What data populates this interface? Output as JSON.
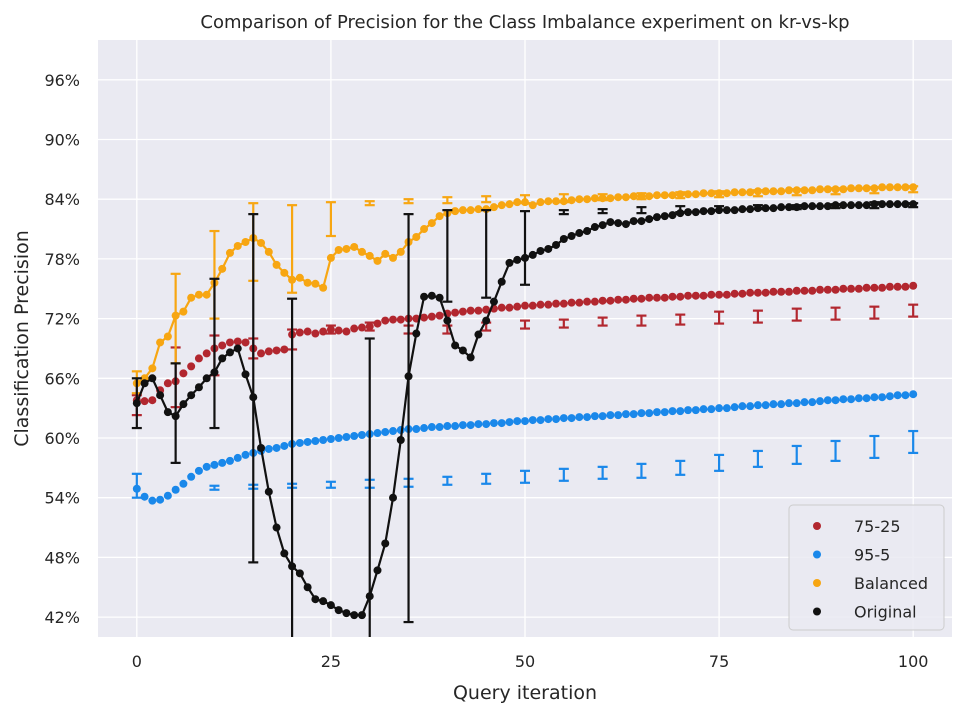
{
  "chart_data": {
    "type": "scatter",
    "title": "Comparison of Precision for the Class Imbalance experiment on kr-vs-kp",
    "xlabel": "Query iteration",
    "ylabel": "Classification Precision",
    "xlim": [
      -5,
      105
    ],
    "ylim": [
      0.4,
      1.0
    ],
    "x_ticks": [
      0,
      25,
      50,
      75,
      100
    ],
    "x_tick_labels": [
      "0",
      "25",
      "50",
      "75",
      "100"
    ],
    "y_ticks": [
      0.42,
      0.48,
      0.54,
      0.6,
      0.66,
      0.72,
      0.78,
      0.84,
      0.9,
      0.96
    ],
    "y_tick_labels": [
      "42%",
      "48%",
      "54%",
      "60%",
      "66%",
      "72%",
      "78%",
      "84%",
      "90%",
      "96%"
    ],
    "grid": true,
    "legend_position": "bottom-right",
    "x_step": 1,
    "series": [
      {
        "name": "75-25",
        "color": "#b2272f",
        "line": false,
        "values": [
          0.638,
          0.637,
          0.638,
          0.648,
          0.655,
          0.657,
          0.665,
          0.672,
          0.68,
          0.685,
          0.69,
          0.693,
          0.696,
          0.697,
          0.696,
          0.69,
          0.685,
          0.687,
          0.688,
          0.689,
          0.704,
          0.706,
          0.707,
          0.705,
          0.707,
          0.709,
          0.708,
          0.707,
          0.71,
          0.711,
          0.712,
          0.715,
          0.718,
          0.719,
          0.719,
          0.72,
          0.72,
          0.721,
          0.722,
          0.723,
          0.725,
          0.726,
          0.727,
          0.728,
          0.728,
          0.729,
          0.73,
          0.731,
          0.731,
          0.732,
          0.733,
          0.733,
          0.734,
          0.734,
          0.735,
          0.735,
          0.736,
          0.736,
          0.737,
          0.737,
          0.738,
          0.738,
          0.739,
          0.739,
          0.74,
          0.74,
          0.741,
          0.741,
          0.741,
          0.742,
          0.742,
          0.743,
          0.743,
          0.743,
          0.744,
          0.744,
          0.744,
          0.745,
          0.745,
          0.746,
          0.746,
          0.746,
          0.747,
          0.747,
          0.747,
          0.748,
          0.748,
          0.748,
          0.749,
          0.749,
          0.749,
          0.75,
          0.75,
          0.75,
          0.751,
          0.751,
          0.751,
          0.752,
          0.752,
          0.752,
          0.753
        ],
        "error_bars": [
          {
            "x": 0,
            "center": 0.633,
            "half": 0.01
          },
          {
            "x": 5,
            "center": 0.661,
            "half": 0.03
          },
          {
            "x": 10,
            "center": 0.683,
            "half": 0.02
          },
          {
            "x": 15,
            "center": 0.69,
            "half": 0.01
          },
          {
            "x": 20,
            "center": 0.699,
            "half": 0.01
          },
          {
            "x": 25,
            "center": 0.709,
            "half": 0.004
          },
          {
            "x": 30,
            "center": 0.712,
            "half": 0.004
          },
          {
            "x": 35,
            "center": 0.709,
            "half": 0.004
          },
          {
            "x": 40,
            "center": 0.709,
            "half": 0.004
          },
          {
            "x": 45,
            "center": 0.712,
            "half": 0.004
          },
          {
            "x": 50,
            "center": 0.714,
            "half": 0.004
          },
          {
            "x": 55,
            "center": 0.715,
            "half": 0.004
          },
          {
            "x": 60,
            "center": 0.717,
            "half": 0.004
          },
          {
            "x": 65,
            "center": 0.718,
            "half": 0.005
          },
          {
            "x": 70,
            "center": 0.719,
            "half": 0.005
          },
          {
            "x": 75,
            "center": 0.721,
            "half": 0.006
          },
          {
            "x": 80,
            "center": 0.722,
            "half": 0.006
          },
          {
            "x": 85,
            "center": 0.724,
            "half": 0.006
          },
          {
            "x": 90,
            "center": 0.725,
            "half": 0.006
          },
          {
            "x": 95,
            "center": 0.726,
            "half": 0.006
          },
          {
            "x": 100,
            "center": 0.728,
            "half": 0.006
          }
        ]
      },
      {
        "name": "95-5",
        "color": "#1a88ea",
        "line": false,
        "values": [
          0.549,
          0.541,
          0.537,
          0.538,
          0.542,
          0.548,
          0.554,
          0.561,
          0.567,
          0.571,
          0.573,
          0.575,
          0.577,
          0.58,
          0.583,
          0.585,
          0.587,
          0.589,
          0.59,
          0.592,
          0.594,
          0.595,
          0.596,
          0.597,
          0.598,
          0.599,
          0.6,
          0.601,
          0.602,
          0.603,
          0.604,
          0.605,
          0.606,
          0.607,
          0.608,
          0.609,
          0.609,
          0.61,
          0.611,
          0.611,
          0.612,
          0.612,
          0.613,
          0.613,
          0.614,
          0.614,
          0.615,
          0.615,
          0.616,
          0.617,
          0.617,
          0.618,
          0.618,
          0.619,
          0.619,
          0.62,
          0.62,
          0.621,
          0.621,
          0.622,
          0.622,
          0.623,
          0.623,
          0.624,
          0.624,
          0.625,
          0.625,
          0.626,
          0.626,
          0.627,
          0.627,
          0.628,
          0.628,
          0.629,
          0.629,
          0.63,
          0.63,
          0.631,
          0.632,
          0.632,
          0.633,
          0.633,
          0.634,
          0.634,
          0.635,
          0.635,
          0.636,
          0.636,
          0.637,
          0.638,
          0.638,
          0.639,
          0.639,
          0.64,
          0.64,
          0.641,
          0.641,
          0.642,
          0.643,
          0.643,
          0.644
        ],
        "error_bars": [
          {
            "x": 0,
            "center": 0.552,
            "half": 0.012
          },
          {
            "x": 10,
            "center": 0.55,
            "half": 0.002
          },
          {
            "x": 15,
            "center": 0.551,
            "half": 0.002
          },
          {
            "x": 20,
            "center": 0.552,
            "half": 0.002
          },
          {
            "x": 25,
            "center": 0.553,
            "half": 0.003
          },
          {
            "x": 30,
            "center": 0.554,
            "half": 0.004
          },
          {
            "x": 35,
            "center": 0.555,
            "half": 0.004
          },
          {
            "x": 40,
            "center": 0.557,
            "half": 0.004
          },
          {
            "x": 45,
            "center": 0.559,
            "half": 0.005
          },
          {
            "x": 50,
            "center": 0.561,
            "half": 0.006
          },
          {
            "x": 55,
            "center": 0.563,
            "half": 0.006
          },
          {
            "x": 60,
            "center": 0.565,
            "half": 0.006
          },
          {
            "x": 65,
            "center": 0.567,
            "half": 0.007
          },
          {
            "x": 70,
            "center": 0.57,
            "half": 0.007
          },
          {
            "x": 75,
            "center": 0.575,
            "half": 0.008
          },
          {
            "x": 80,
            "center": 0.579,
            "half": 0.008
          },
          {
            "x": 85,
            "center": 0.583,
            "half": 0.009
          },
          {
            "x": 90,
            "center": 0.587,
            "half": 0.01
          },
          {
            "x": 95,
            "center": 0.591,
            "half": 0.011
          },
          {
            "x": 100,
            "center": 0.596,
            "half": 0.011
          }
        ]
      },
      {
        "name": "Balanced",
        "color": "#f7a612",
        "line": true,
        "values": [
          0.655,
          0.66,
          0.67,
          0.696,
          0.702,
          0.723,
          0.727,
          0.741,
          0.744,
          0.744,
          0.756,
          0.77,
          0.786,
          0.793,
          0.797,
          0.801,
          0.796,
          0.787,
          0.774,
          0.766,
          0.759,
          0.761,
          0.756,
          0.755,
          0.751,
          0.781,
          0.789,
          0.79,
          0.792,
          0.787,
          0.783,
          0.778,
          0.785,
          0.781,
          0.787,
          0.797,
          0.802,
          0.81,
          0.816,
          0.823,
          0.826,
          0.828,
          0.829,
          0.829,
          0.83,
          0.83,
          0.832,
          0.834,
          0.835,
          0.837,
          0.837,
          0.834,
          0.837,
          0.838,
          0.838,
          0.838,
          0.839,
          0.84,
          0.84,
          0.841,
          0.841,
          0.841,
          0.842,
          0.842,
          0.843,
          0.843,
          0.843,
          0.844,
          0.844,
          0.844,
          0.845,
          0.845,
          0.845,
          0.846,
          0.846,
          0.846,
          0.846,
          0.847,
          0.847,
          0.847,
          0.848,
          0.848,
          0.848,
          0.848,
          0.849,
          0.849,
          0.849,
          0.849,
          0.85,
          0.85,
          0.85,
          0.85,
          0.851,
          0.851,
          0.851,
          0.851,
          0.852,
          0.852,
          0.852,
          0.852,
          0.852
        ],
        "error_bars": [
          {
            "x": 0,
            "center": 0.656,
            "half": 0.011
          },
          {
            "x": 5,
            "center": 0.72,
            "half": 0.045
          },
          {
            "x": 10,
            "center": 0.764,
            "half": 0.044
          },
          {
            "x": 15,
            "center": 0.797,
            "half": 0.039
          },
          {
            "x": 20,
            "center": 0.79,
            "half": 0.044
          },
          {
            "x": 25,
            "center": 0.82,
            "half": 0.017
          },
          {
            "x": 30,
            "center": 0.836,
            "half": 0.002
          },
          {
            "x": 35,
            "center": 0.838,
            "half": 0.002
          },
          {
            "x": 40,
            "center": 0.839,
            "half": 0.003
          },
          {
            "x": 45,
            "center": 0.84,
            "half": 0.003
          },
          {
            "x": 50,
            "center": 0.84,
            "half": 0.004
          },
          {
            "x": 55,
            "center": 0.841,
            "half": 0.004
          },
          {
            "x": 60,
            "center": 0.842,
            "half": 0.003
          },
          {
            "x": 65,
            "center": 0.843,
            "half": 0.003
          },
          {
            "x": 70,
            "center": 0.844,
            "half": 0.003
          },
          {
            "x": 75,
            "center": 0.845,
            "half": 0.003
          },
          {
            "x": 80,
            "center": 0.846,
            "half": 0.003
          },
          {
            "x": 85,
            "center": 0.847,
            "half": 0.003
          },
          {
            "x": 90,
            "center": 0.848,
            "half": 0.003
          },
          {
            "x": 95,
            "center": 0.849,
            "half": 0.003
          },
          {
            "x": 100,
            "center": 0.85,
            "half": 0.003
          }
        ]
      },
      {
        "name": "Original",
        "color": "#111111",
        "line": true,
        "values": [
          0.635,
          0.655,
          0.66,
          0.643,
          0.626,
          0.622,
          0.634,
          0.643,
          0.651,
          0.66,
          0.666,
          0.68,
          0.686,
          0.69,
          0.664,
          0.641,
          0.59,
          0.546,
          0.51,
          0.484,
          0.471,
          0.464,
          0.45,
          0.438,
          0.436,
          0.432,
          0.427,
          0.424,
          0.422,
          0.422,
          0.441,
          0.467,
          0.494,
          0.54,
          0.598,
          0.662,
          0.705,
          0.742,
          0.743,
          0.741,
          0.718,
          0.693,
          0.688,
          0.681,
          0.704,
          0.718,
          0.737,
          0.757,
          0.776,
          0.779,
          0.781,
          0.784,
          0.788,
          0.79,
          0.794,
          0.8,
          0.803,
          0.806,
          0.808,
          0.812,
          0.814,
          0.817,
          0.816,
          0.815,
          0.818,
          0.818,
          0.82,
          0.822,
          0.823,
          0.824,
          0.826,
          0.827,
          0.827,
          0.828,
          0.828,
          0.829,
          0.829,
          0.829,
          0.83,
          0.83,
          0.831,
          0.831,
          0.831,
          0.832,
          0.832,
          0.832,
          0.833,
          0.833,
          0.833,
          0.833,
          0.834,
          0.834,
          0.834,
          0.834,
          0.834,
          0.835,
          0.835,
          0.835,
          0.835,
          0.835,
          0.835
        ],
        "error_bars": [
          {
            "x": 0,
            "center": 0.635,
            "half": 0.025
          },
          {
            "x": 5,
            "center": 0.625,
            "half": 0.05
          },
          {
            "x": 10,
            "center": 0.685,
            "half": 0.075
          },
          {
            "x": 15,
            "center": 0.65,
            "half": 0.175
          },
          {
            "x": 20,
            "center": 0.56,
            "half": 0.18
          },
          {
            "x": 30,
            "center": 0.47,
            "half": 0.23
          },
          {
            "x": 35,
            "center": 0.62,
            "half": 0.205
          },
          {
            "x": 40,
            "center": 0.783,
            "half": 0.046
          },
          {
            "x": 45,
            "center": 0.785,
            "half": 0.044
          },
          {
            "x": 50,
            "center": 0.791,
            "half": 0.037
          },
          {
            "x": 55,
            "center": 0.827,
            "half": 0.002
          },
          {
            "x": 60,
            "center": 0.828,
            "half": 0.002
          },
          {
            "x": 65,
            "center": 0.829,
            "half": 0.003
          },
          {
            "x": 70,
            "center": 0.83,
            "half": 0.003
          },
          {
            "x": 75,
            "center": 0.831,
            "half": 0.002
          },
          {
            "x": 80,
            "center": 0.832,
            "half": 0.002
          },
          {
            "x": 85,
            "center": 0.832,
            "half": 0.002
          },
          {
            "x": 90,
            "center": 0.833,
            "half": 0.002
          },
          {
            "x": 95,
            "center": 0.834,
            "half": 0.003
          },
          {
            "x": 100,
            "center": 0.834,
            "half": 0.002
          }
        ]
      }
    ]
  }
}
